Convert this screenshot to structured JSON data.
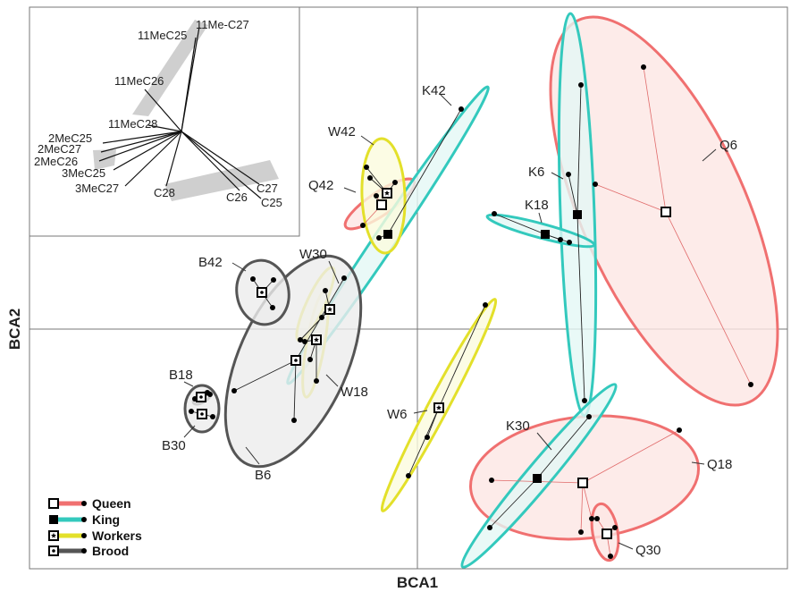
{
  "colors": {
    "Queen": "#f07070",
    "King": "#33c9bd",
    "Workers": "#e3e02a",
    "Brood": "#555555"
  },
  "chart_data": {
    "type": "scatter",
    "xlabel": "BCA1",
    "ylabel": "BCA2",
    "legend": {
      "placement": "bottom-left",
      "entries": [
        {
          "name": "Queen",
          "marker": "open-square"
        },
        {
          "name": "King",
          "marker": "filled-square"
        },
        {
          "name": "Workers",
          "marker": "star-square"
        },
        {
          "name": "Brood",
          "marker": "dot-square"
        }
      ]
    },
    "groups": [
      {
        "label": "Q6",
        "caste": "Queen",
        "centroid": [
          745,
          237
        ],
        "points": [
          [
            720,
            75
          ],
          [
            666,
            206
          ],
          [
            840,
            430
          ]
        ]
      },
      {
        "label": "Q18",
        "caste": "Queen",
        "centroid": [
          652,
          540
        ],
        "points": [
          [
            760,
            481
          ],
          [
            550,
            537
          ],
          [
            662,
            580
          ],
          [
            650,
            595
          ]
        ]
      },
      {
        "label": "Q30",
        "caste": "Queen",
        "centroid": [
          679,
          597
        ],
        "points": [
          [
            668,
            580
          ],
          [
            688,
            590
          ],
          [
            683,
            622
          ]
        ]
      },
      {
        "label": "Q42",
        "caste": "Queen",
        "centroid": [
          427,
          229
        ],
        "points": [
          [
            421,
            219
          ],
          [
            406,
            252
          ]
        ]
      },
      {
        "label": "K6",
        "caste": "King",
        "centroid": [
          646,
          240
        ],
        "points": [
          [
            650,
            95
          ],
          [
            636,
            195
          ],
          [
            654,
            448
          ]
        ]
      },
      {
        "label": "K18",
        "caste": "King",
        "centroid": [
          610,
          262
        ],
        "points": [
          [
            553,
            239
          ],
          [
            627,
            268
          ],
          [
            637,
            271
          ]
        ]
      },
      {
        "label": "K30",
        "caste": "King",
        "centroid": [
          601,
          535
        ],
        "points": [
          [
            659,
            466
          ],
          [
            548,
            590
          ]
        ]
      },
      {
        "label": "K42",
        "caste": "King",
        "centroid": [
          434,
          262
        ],
        "points": [
          [
            516,
            122
          ],
          [
            424,
            266
          ]
        ]
      },
      {
        "label": "W6",
        "caste": "Workers",
        "centroid": [
          491,
          456
        ],
        "points": [
          [
            543,
            341
          ],
          [
            478,
            489
          ],
          [
            457,
            532
          ]
        ]
      },
      {
        "label": "W18",
        "caste": "Workers",
        "centroid": [
          354,
          380
        ],
        "points": [
          [
            341,
            382
          ],
          [
            347,
            402
          ],
          [
            354,
            426
          ]
        ]
      },
      {
        "label": "W30",
        "caste": "Workers",
        "centroid": [
          369,
          346
        ],
        "points": [
          [
            364,
            325
          ],
          [
            360,
            355
          ],
          [
            336,
            380
          ]
        ]
      },
      {
        "label": "W42",
        "caste": "Workers",
        "centroid": [
          433,
          216
        ],
        "points": [
          [
            410,
            187
          ],
          [
            414,
            199
          ],
          [
            442,
            204
          ]
        ]
      },
      {
        "label": "B6",
        "caste": "Brood",
        "centroid": [
          331,
          403
        ],
        "points": [
          [
            262,
            437
          ],
          [
            329,
            470
          ],
          [
            385,
            311
          ]
        ]
      },
      {
        "label": "B18",
        "caste": "Brood",
        "centroid": [
          225,
          444
        ],
        "points": [
          [
            218,
            446
          ],
          [
            232,
            439
          ],
          [
            235,
            441
          ]
        ]
      },
      {
        "label": "B30",
        "caste": "Brood",
        "centroid": [
          226,
          463
        ],
        "points": [
          [
            214,
            460
          ],
          [
            238,
            466
          ]
        ]
      },
      {
        "label": "B42",
        "caste": "Brood",
        "centroid": [
          293,
          327
        ],
        "points": [
          [
            283,
            312
          ],
          [
            306,
            313
          ],
          [
            305,
            344
          ]
        ]
      }
    ],
    "inset_vectors": [
      "11MeC25",
      "11Me-C27",
      "11MeC26",
      "11MeC28",
      "2MeC25",
      "2MeC27",
      "2MeC26",
      "3MeC25",
      "3MeC27",
      "C27",
      "C25",
      "C26",
      "C28"
    ]
  }
}
